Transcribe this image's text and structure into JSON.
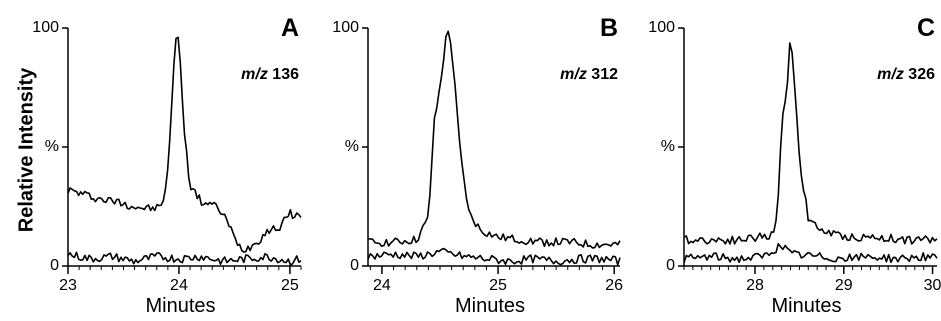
{
  "chart_data": {
    "ylabel": "Relative Intensity",
    "panels": [
      {
        "type": "line",
        "letter": "A",
        "ion": {
          "prefix": "m/z",
          "value": "136"
        },
        "xlabel": "Minutes",
        "xlim": [
          23.0,
          25.1
        ],
        "xticks": [
          "23",
          "24",
          "25"
        ],
        "ylim": [
          0,
          100
        ],
        "yticks": [
          "0",
          "%",
          "100"
        ],
        "series": [
          {
            "x": [
              23.0,
              23.15,
              23.3,
              23.45,
              23.6,
              23.75,
              23.85,
              23.9,
              23.95,
              23.98,
              24.0,
              24.05,
              24.1,
              24.2,
              24.3,
              24.4,
              24.5,
              24.55,
              24.6,
              24.7,
              24.8,
              24.9,
              25.0,
              25.1
            ],
            "y": [
              32,
              30,
              28,
              27,
              25,
              24,
              25,
              40,
              80,
              101,
              95,
              55,
              34,
              27,
              26,
              22,
              12,
              8,
              7,
              10,
              15,
              16,
              22,
              21
            ]
          },
          {
            "x": [
              23.0,
              23.2,
              23.4,
              23.6,
              23.8,
              24.0,
              24.2,
              24.4,
              24.6,
              24.8,
              25.0,
              25.1
            ],
            "y": [
              5,
              3,
              4,
              2,
              4,
              3,
              4,
              2,
              3,
              4,
              2,
              3
            ]
          }
        ]
      },
      {
        "type": "line",
        "letter": "B",
        "ion": {
          "prefix": "m/z",
          "value": "312"
        },
        "xlabel": "Minutes",
        "xlim": [
          23.88,
          26.05
        ],
        "xticks": [
          "24",
          "25",
          "26"
        ],
        "ylim": [
          0,
          100
        ],
        "yticks": [
          "0",
          "%",
          "100"
        ],
        "series": [
          {
            "x": [
              23.88,
              24.1,
              24.3,
              24.4,
              24.45,
              24.5,
              24.55,
              24.58,
              24.62,
              24.68,
              24.75,
              24.85,
              25.0,
              25.2,
              25.4,
              25.6,
              25.8,
              26.05
            ],
            "y": [
              10,
              10,
              11,
              20,
              60,
              75,
              95,
              100,
              80,
              45,
              22,
              15,
              12,
              11,
              10,
              10,
              9,
              9
            ]
          },
          {
            "x": [
              23.88,
              24.1,
              24.3,
              24.5,
              24.7,
              24.9,
              25.1,
              25.3,
              25.5,
              25.7,
              25.9,
              26.05
            ],
            "y": [
              4,
              5,
              4,
              6,
              4,
              3,
              2,
              3,
              2,
              3,
              3,
              2
            ]
          }
        ]
      },
      {
        "type": "line",
        "letter": "C",
        "ion": {
          "prefix": "m/z",
          "value": "326"
        },
        "xlabel": "Minutes",
        "xlim": [
          27.2,
          30.05
        ],
        "xticks": [
          "28",
          "29",
          "30"
        ],
        "ylim": [
          0,
          100
        ],
        "yticks": [
          "0",
          "%",
          "100"
        ],
        "series": [
          {
            "x": [
              27.2,
              27.5,
              27.8,
              28.0,
              28.2,
              28.25,
              28.3,
              28.35,
              28.4,
              28.45,
              28.5,
              28.6,
              28.7,
              28.9,
              29.1,
              29.4,
              29.7,
              30.05
            ],
            "y": [
              11,
              11,
              11,
              12,
              13,
              20,
              60,
              70,
              98,
              75,
              45,
              20,
              16,
              13,
              12,
              12,
              11,
              11
            ]
          },
          {
            "x": [
              27.2,
              27.5,
              27.8,
              28.1,
              28.3,
              28.4,
              28.7,
              29.0,
              29.3,
              29.6,
              29.9,
              30.05
            ],
            "y": [
              3,
              4,
              3,
              4,
              9,
              5,
              4,
              3,
              4,
              3,
              4,
              3
            ]
          }
        ]
      }
    ]
  }
}
